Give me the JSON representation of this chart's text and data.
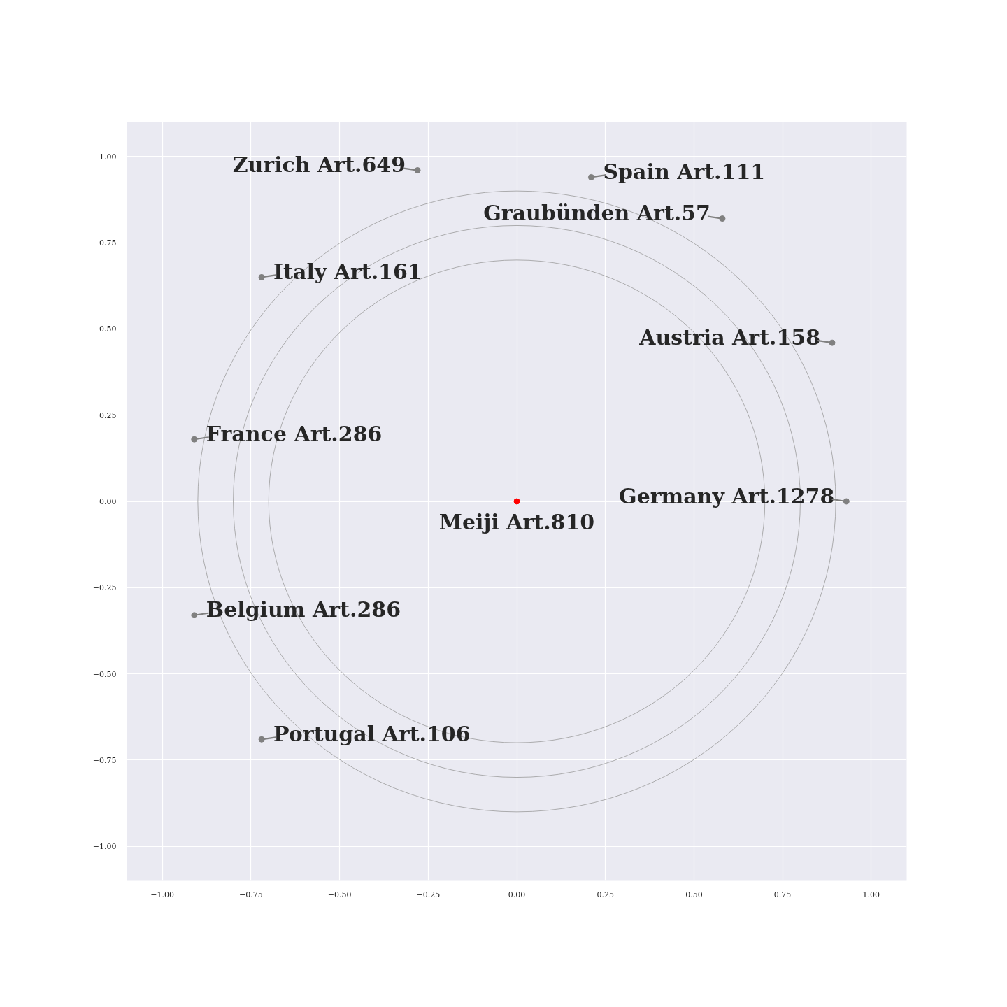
{
  "chart_data": {
    "type": "scatter",
    "marker": "circle",
    "grid": true,
    "xlim": [
      -1.1,
      1.1
    ],
    "ylim": [
      -1.1,
      1.1
    ],
    "xticks": [
      {
        "value": -1,
        "label": "−1.00"
      },
      {
        "value": -0.75,
        "label": "−0.75"
      },
      {
        "value": -0.5,
        "label": "−0.50"
      },
      {
        "value": -0.25,
        "label": "−0.25"
      },
      {
        "value": 0,
        "label": "0.00"
      },
      {
        "value": 0.25,
        "label": "0.25"
      },
      {
        "value": 0.5,
        "label": "0.50"
      },
      {
        "value": 0.75,
        "label": "0.75"
      },
      {
        "value": 1,
        "label": "1.00"
      }
    ],
    "yticks": [
      {
        "value": -1,
        "label": "−1.00"
      },
      {
        "value": -0.75,
        "label": "−0.75"
      },
      {
        "value": -0.5,
        "label": "−0.50"
      },
      {
        "value": -0.25,
        "label": "−0.25"
      },
      {
        "value": 0,
        "label": "0.00"
      },
      {
        "value": 0.25,
        "label": "0.25"
      },
      {
        "value": 0.5,
        "label": "0.50"
      },
      {
        "value": 0.75,
        "label": "0.75"
      },
      {
        "value": 1,
        "label": "1.00"
      }
    ],
    "series": [
      {
        "color": "#808080",
        "x": [
          -0.28,
          0.21,
          0.58,
          -0.72,
          0.89,
          -0.91,
          0.93,
          -0.91,
          -0.72
        ],
        "values": [
          0.96,
          0.94,
          0.82,
          0.65,
          0.46,
          0.18,
          0,
          -0.33,
          -0.69
        ]
      },
      {
        "color": "#ff0000",
        "x": [
          0
        ],
        "values": [
          0
        ]
      }
    ],
    "annotations": [
      {
        "text": "Zurich Art.649",
        "x": -0.28,
        "y": 0.96
      },
      {
        "text": "Spain Art.111",
        "x": 0.21,
        "y": 0.94
      },
      {
        "text": "Graubünden Art.57",
        "x": 0.58,
        "y": 0.82
      },
      {
        "text": "Italy Art.161",
        "x": -0.72,
        "y": 0.65
      },
      {
        "text": "Austria Art.158",
        "x": 0.89,
        "y": 0.46
      },
      {
        "text": "France Art.286",
        "x": -0.91,
        "y": 0.18
      },
      {
        "text": "Germany Art.1278",
        "x": 0.93,
        "y": 0
      },
      {
        "text": "Meiji Art.810",
        "x": 0,
        "y": 0
      },
      {
        "text": "Belgium Art.286",
        "x": -0.91,
        "y": -0.33
      },
      {
        "text": "Portugal Art.106",
        "x": -0.72,
        "y": -0.69
      }
    ]
  }
}
